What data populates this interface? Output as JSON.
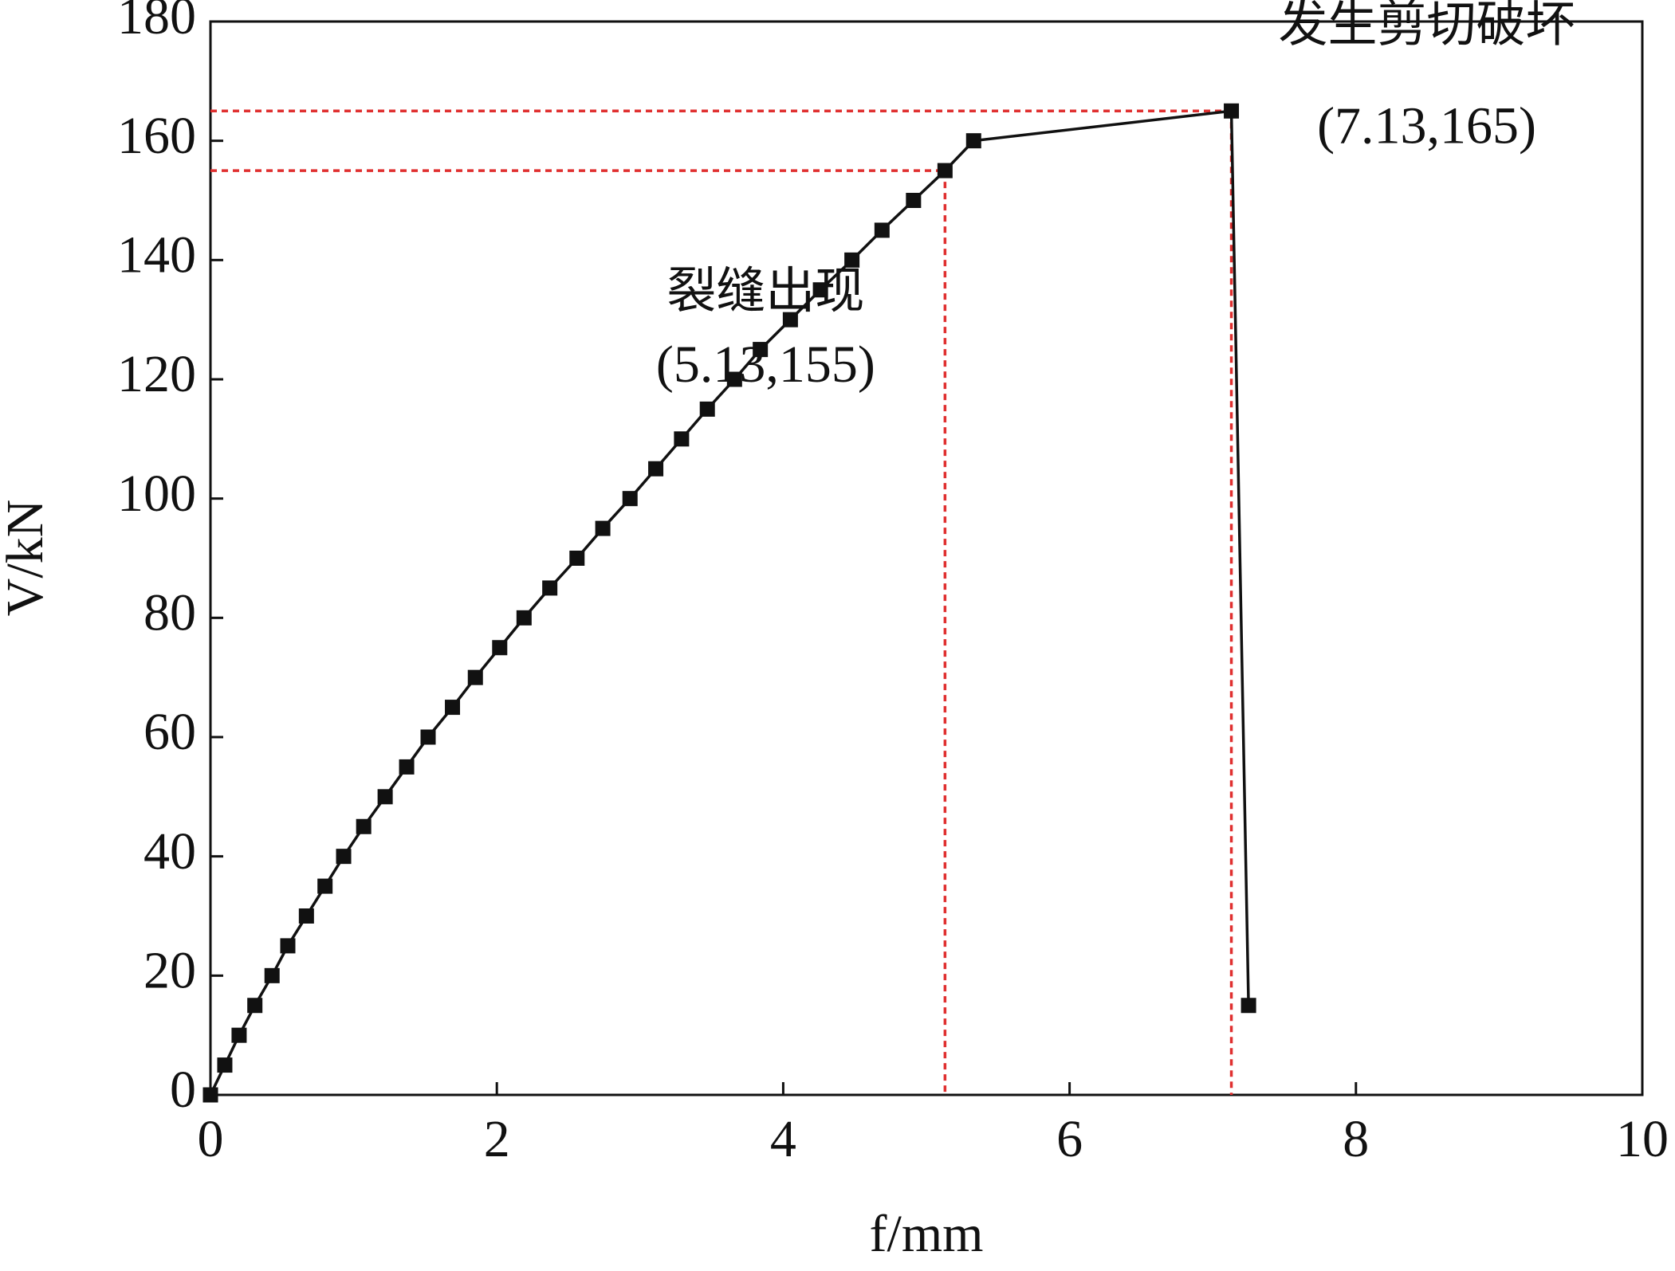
{
  "chart_data": {
    "type": "line",
    "x_label": "f/mm",
    "y_label": "V/kN",
    "xlim": [
      0,
      10
    ],
    "xticks": [
      0,
      2,
      4,
      6,
      8,
      10
    ],
    "ylim": [
      0,
      180
    ],
    "yticks": [
      0,
      20,
      40,
      60,
      80,
      100,
      120,
      140,
      160,
      180
    ],
    "series": [
      {
        "color": "#111111",
        "x": [
          0,
          0.1,
          0.2,
          0.31,
          0.43,
          0.54,
          0.67,
          0.8,
          0.93,
          1.07,
          1.22,
          1.37,
          1.52,
          1.69,
          1.85,
          2.02,
          2.19,
          2.37,
          2.56,
          2.74,
          2.93,
          3.11,
          3.29,
          3.47,
          3.66,
          3.84,
          4.05,
          4.26,
          4.48,
          4.69,
          4.91,
          5.13,
          5.33,
          7.13,
          7.25
        ],
        "values": [
          0,
          5,
          10,
          15,
          20,
          25,
          30,
          35,
          40,
          45,
          50,
          55,
          60,
          65,
          70,
          75,
          80,
          85,
          90,
          95,
          100,
          105,
          110,
          115,
          120,
          125,
          130,
          135,
          140,
          145,
          150,
          155,
          160,
          165,
          15
        ]
      }
    ],
    "annotations": [
      {
        "text": "裂缝出现",
        "label": "(5.13,155)",
        "x": 5.13,
        "y": 155
      },
      {
        "text": "发生剪切破坏",
        "label": "(7.13,165)",
        "x": 7.13,
        "y": 165
      }
    ],
    "annotation_color": "#e03030"
  }
}
